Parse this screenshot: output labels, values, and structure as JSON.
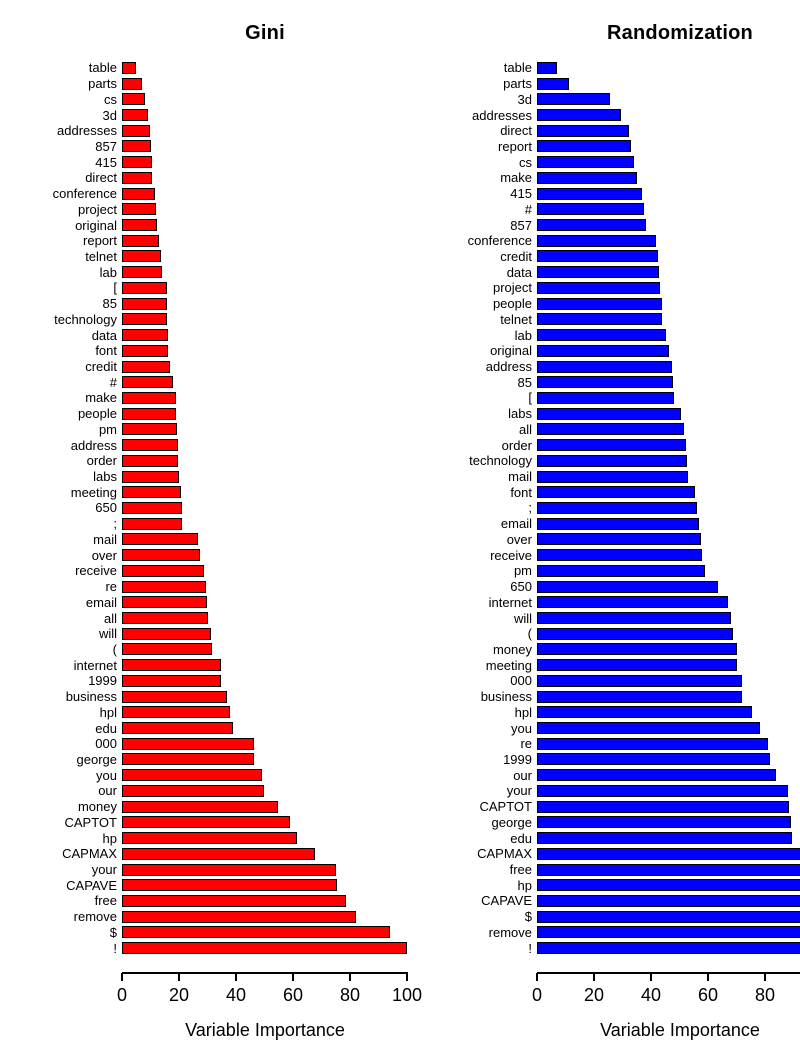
{
  "chart_data": [
    {
      "type": "bar",
      "orientation": "horizontal",
      "title": "Gini",
      "xlabel": "Variable Importance",
      "xlim": [
        0,
        100
      ],
      "xticks": [
        0,
        20,
        40,
        60,
        80,
        100
      ],
      "grid": false,
      "legend": "none",
      "bar_color": "#ff0000",
      "bar_border_color": "#000000",
      "categories": [
        "table",
        "parts",
        "cs",
        "3d",
        "addresses",
        "857",
        "415",
        "direct",
        "conference",
        "project",
        "original",
        "report",
        "telnet",
        "lab",
        "[",
        "85",
        "technology",
        "data",
        "font",
        "credit",
        "#",
        "make",
        "people",
        "pm",
        "address",
        "order",
        "labs",
        "meeting",
        "650",
        ";",
        "mail",
        "over",
        "receive",
        "re",
        "email",
        "all",
        "will",
        "(",
        "internet",
        "1999",
        "business",
        "hpl",
        "edu",
        "000",
        "george",
        "you",
        "our",
        "money",
        "CAPTOT",
        "hp",
        "CAPMAX",
        "your",
        "CAPAVE",
        "free",
        "remove",
        "$",
        "!"
      ],
      "values": [
        5,
        7,
        8,
        9,
        9.8,
        10,
        10.5,
        10.7,
        11.5,
        11.9,
        12.2,
        12.9,
        13.7,
        14,
        15.7,
        15.8,
        15.9,
        16.2,
        16.2,
        17,
        17.9,
        19,
        19,
        19.2,
        19.8,
        19.8,
        20,
        20.7,
        21,
        21.2,
        26.6,
        27.4,
        28.8,
        29.4,
        29.8,
        30.2,
        31.3,
        31.6,
        34.7,
        34.8,
        36.9,
        37.8,
        38.9,
        46.2,
        46.3,
        49.1,
        49.7,
        54.6,
        59,
        61.5,
        67.7,
        75,
        75.4,
        78.7,
        82,
        94,
        100
      ]
    },
    {
      "type": "bar",
      "orientation": "horizontal",
      "title": "Randomization",
      "xlabel": "Variable Importance",
      "xlim": [
        0,
        100
      ],
      "xticks": [
        0,
        20,
        40,
        60,
        80,
        100
      ],
      "grid": false,
      "legend": "none",
      "bar_color": "#0000ff",
      "bar_border_color": "#000000",
      "categories": [
        "table",
        "parts",
        "3d",
        "addresses",
        "direct",
        "report",
        "cs",
        "make",
        "415",
        "#",
        "857",
        "conference",
        "credit",
        "data",
        "project",
        "people",
        "telnet",
        "lab",
        "original",
        "address",
        "85",
        "[",
        "labs",
        "all",
        "order",
        "technology",
        "mail",
        "font",
        ";",
        "email",
        "over",
        "receive",
        "pm",
        "650",
        "internet",
        "will",
        "(",
        "money",
        "meeting",
        "000",
        "business",
        "hpl",
        "you",
        "re",
        "1999",
        "our",
        "your",
        "CAPTOT",
        "george",
        "edu",
        "CAPMAX",
        "free",
        "hp",
        "CAPAVE",
        "$",
        "remove",
        "!"
      ],
      "values": [
        7,
        11.3,
        25.7,
        29.6,
        32.3,
        33.1,
        33.9,
        35,
        36.8,
        37.6,
        38.2,
        41.6,
        42.3,
        42.8,
        43,
        43.8,
        44,
        45.1,
        46.2,
        47.2,
        47.8,
        48.1,
        50.7,
        51.6,
        52.2,
        52.7,
        53.1,
        55.6,
        56.2,
        57,
        57.5,
        57.8,
        59,
        63.4,
        67,
        68.2,
        68.7,
        70,
        70.3,
        71.8,
        72.1,
        75.3,
        78.2,
        81.2,
        81.7,
        83.7,
        88.2,
        88.5,
        89.2,
        89.6,
        93.3,
        93.8,
        94.7,
        95.4,
        96.3,
        96.8,
        100
      ]
    }
  ]
}
